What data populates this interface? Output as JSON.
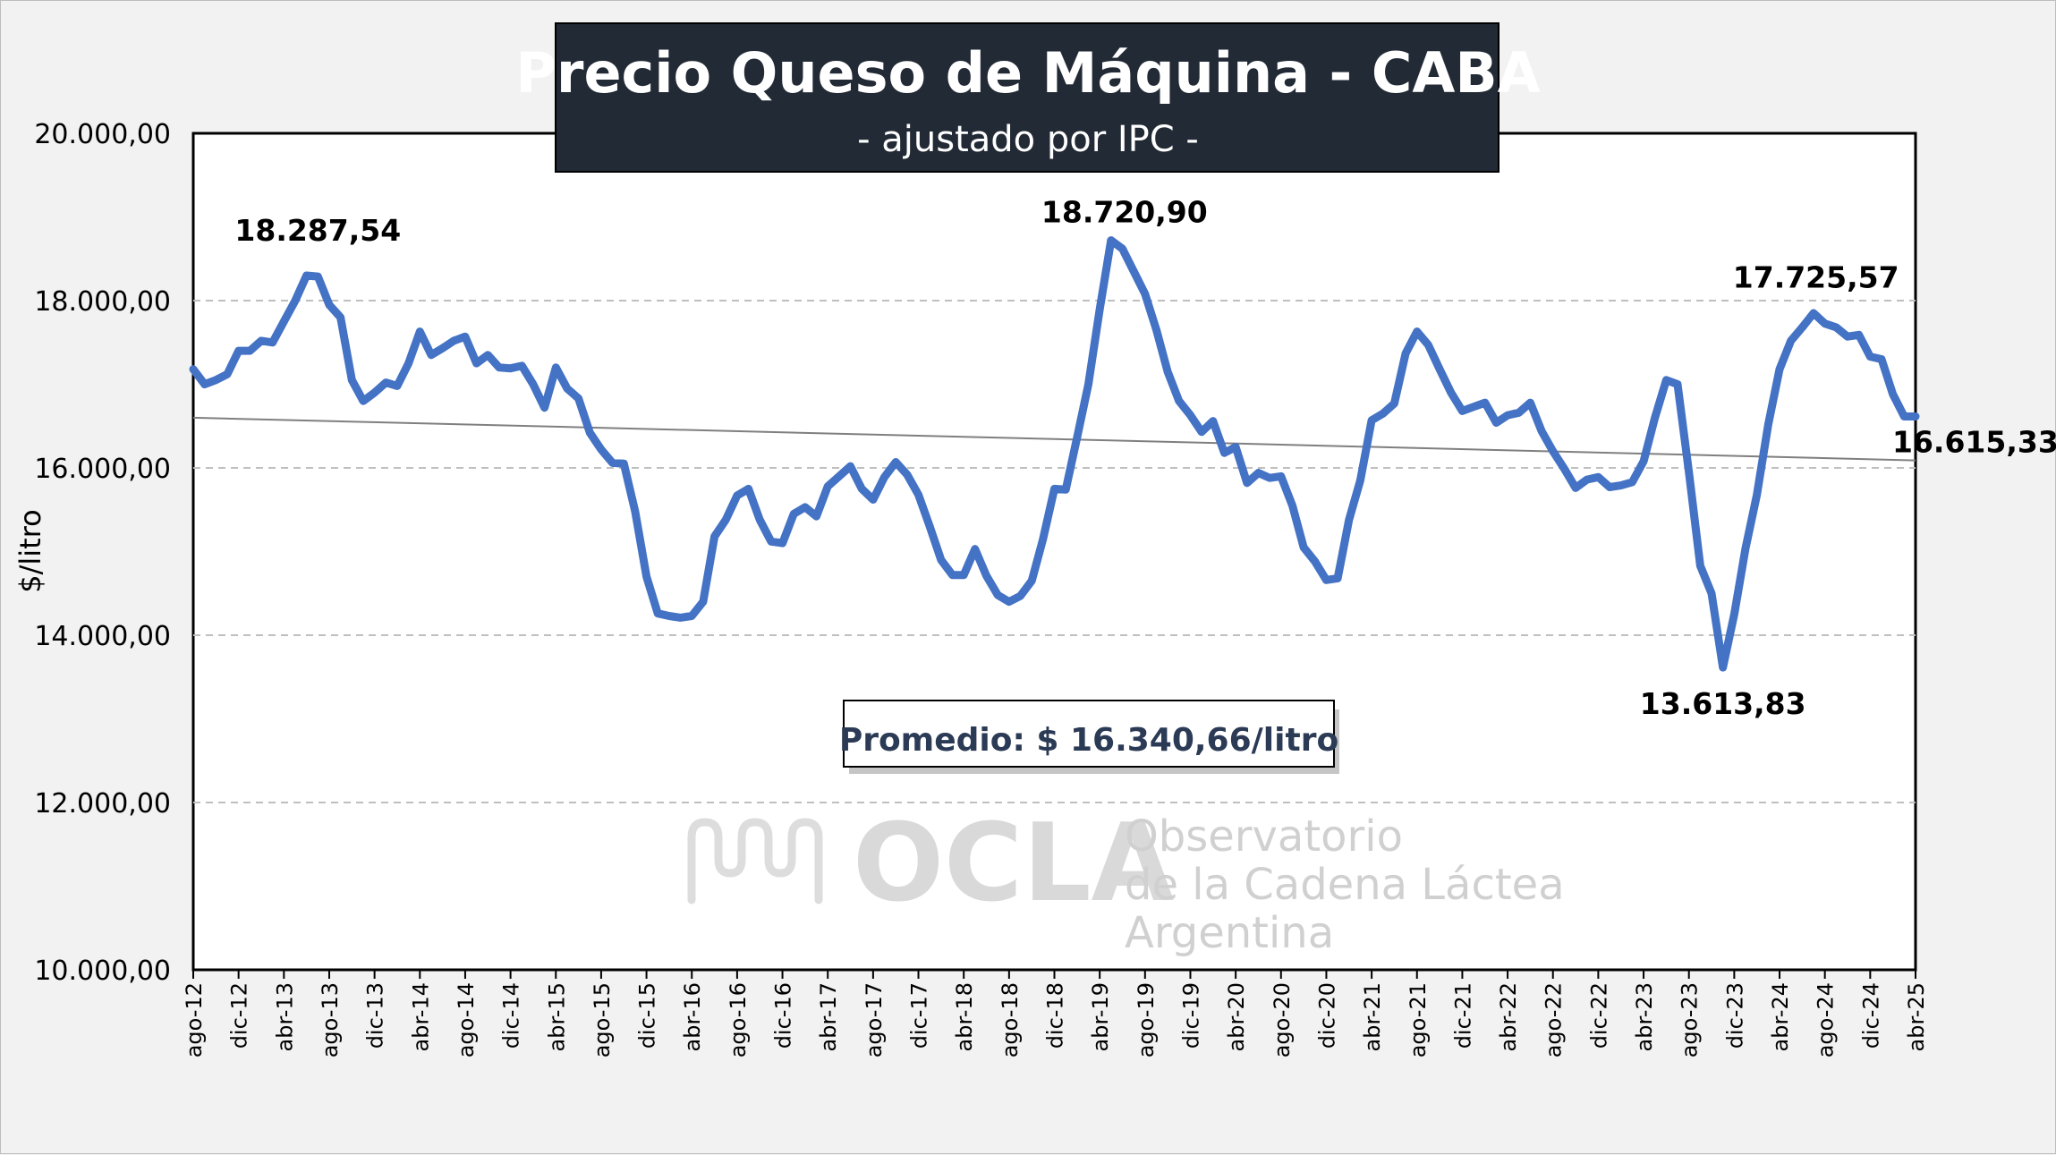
{
  "colors": {
    "line": "#4472c4",
    "trend": "#7f7f7f",
    "title_bg": "#222a35",
    "plot_bg": "#ffffff",
    "grid": "#bfbfbf",
    "avg_text": "#2b3a55"
  },
  "title": {
    "main": "Precio Queso de Máquina - CABA",
    "sub": "- ajustado por IPC -"
  },
  "average_box": {
    "label": "Promedio: $ 16.340,66/litro"
  },
  "watermark": {
    "logo_icon": "ocla-waves-icon",
    "brand": "OCLA",
    "line1": "Observatorio",
    "line2": "de la Cadena Láctea",
    "line3": "Argentina"
  },
  "chart_data": {
    "type": "line",
    "ylabel": "$/litro",
    "xlabel": "",
    "ylim": [
      10000,
      20000
    ],
    "yticks": [
      10000,
      12000,
      14000,
      16000,
      18000,
      20000
    ],
    "ytick_labels": [
      "10.000,00",
      "12.000,00",
      "14.000,00",
      "16.000,00",
      "18.000,00",
      "20.000,00"
    ],
    "grid": "horizontal-dashed",
    "x_start": "ago-12",
    "x_end": "abr-25",
    "xtick_labels": [
      "ago-12",
      "dic-12",
      "abr-13",
      "ago-13",
      "dic-13",
      "abr-14",
      "ago-14",
      "dic-14",
      "abr-15",
      "ago-15",
      "dic-15",
      "abr-16",
      "ago-16",
      "dic-16",
      "abr-17",
      "ago-17",
      "dic-17",
      "abr-18",
      "ago-18",
      "dic-18",
      "abr-19",
      "ago-19",
      "dic-19",
      "abr-20",
      "ago-20",
      "dic-20",
      "abr-21",
      "ago-21",
      "dic-21",
      "abr-22",
      "ago-22",
      "dic-22",
      "abr-23",
      "ago-23",
      "dic-23",
      "abr-24",
      "ago-24",
      "dic-24",
      "abr-25"
    ],
    "series": [
      {
        "values": [
          17180,
          17000,
          17050,
          17120,
          17400,
          17400,
          17520,
          17500,
          17750,
          18000,
          18300,
          18287.54,
          17950,
          17800,
          17050,
          16800,
          16900,
          17020,
          16980,
          17250,
          17630,
          17350,
          17430,
          17520,
          17570,
          17250,
          17350,
          17200,
          17190,
          17220,
          17000,
          16720,
          17200,
          16950,
          16830,
          16420,
          16220,
          16060,
          16050,
          15480,
          14700,
          14260,
          14230,
          14210,
          14230,
          14400,
          15180,
          15380,
          15670,
          15750,
          15380,
          15120,
          15100,
          15450,
          15530,
          15420,
          15780,
          15900,
          16020,
          15750,
          15620,
          15890,
          16070,
          15920,
          15680,
          15300,
          14900,
          14720,
          14720,
          15030,
          14710,
          14480,
          14400,
          14470,
          14650,
          15150,
          15750,
          15740,
          16360,
          17000,
          17900,
          18720.9,
          18620,
          18350,
          18080,
          17650,
          17150,
          16800,
          16630,
          16430,
          16560,
          16180,
          16250,
          15820,
          15940,
          15880,
          15900,
          15550,
          15050,
          14880,
          14660,
          14680,
          15380,
          15850,
          16570,
          16650,
          16770,
          17370,
          17630,
          17470,
          17180,
          16900,
          16680,
          16730,
          16780,
          16540,
          16630,
          16660,
          16780,
          16440,
          16200,
          15990,
          15760,
          15860,
          15890,
          15770,
          15790,
          15830,
          16080,
          16600,
          17050,
          17000,
          15950,
          14830,
          14500,
          13613.83,
          14250,
          15040,
          15680,
          16520,
          17180,
          17520,
          17680,
          17850,
          17725.57,
          17680,
          17570,
          17590,
          17330,
          17300,
          16880,
          16615.33,
          16615.33
        ]
      }
    ],
    "trendline": {
      "start": 16600,
      "end": 16090
    },
    "annotations": [
      {
        "label": "18.287,54",
        "value": 18287.54
      },
      {
        "label": "18.720,90",
        "value": 18720.9
      },
      {
        "label": "13.613,83",
        "value": 13613.83
      },
      {
        "label": "17.725,57",
        "value": 17725.57
      },
      {
        "label": "16.615,33",
        "value": 16615.33
      }
    ]
  }
}
